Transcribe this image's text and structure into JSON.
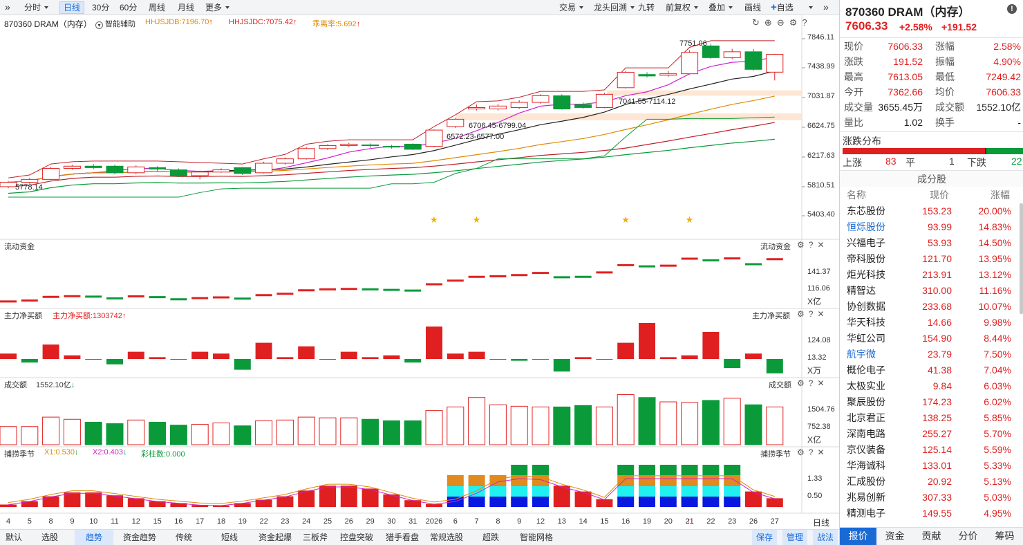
{
  "toolbar": {
    "items": [
      "分时",
      "日线",
      "30分",
      "60分",
      "周线",
      "月线",
      "更多"
    ],
    "right_items": [
      "交易",
      "龙头回溯",
      "九转",
      "前复权",
      "叠加",
      "画线",
      "自选"
    ]
  },
  "chart_header": {
    "title": "870360 DRAM（内存）",
    "assist": "智能辅助",
    "ind1": "HHJSJDB:7196.70",
    "ind2": "HHJSJDC:7075.42",
    "ind3": "乖离率:5.692"
  },
  "price_axis": [
    "7846.11",
    "7438.99",
    "7031.87",
    "6624.75",
    "6217.63",
    "5810.51",
    "5403.40"
  ],
  "annotations": {
    "high": "7751.06",
    "low": "5778.14",
    "zone1": "7041.55-7114.12",
    "zone2": "6706.45-6799.04",
    "zone3": "6572.23-6577.00"
  },
  "panels": {
    "flow": {
      "label": "流动资金",
      "right_label": "流动资金",
      "ticks": [
        "141.37",
        "116.06"
      ],
      "unit": "X亿"
    },
    "main": {
      "label": "主力净买额",
      "value": "主力净买额:1303742",
      "right_label": "主力净买额",
      "ticks": [
        "124.08",
        "13.32"
      ],
      "unit": "X万"
    },
    "volume": {
      "label": "成交额",
      "value": "1552.10亿",
      "right_label": "成交额",
      "ticks": [
        "1504.76",
        "752.38"
      ],
      "unit": "X亿"
    },
    "season": {
      "label": "捕捞季节",
      "x1": "X1:0.530",
      "x2": "X2:0.403",
      "bars": "彩柱数:0.000",
      "right_label": "捕捞季节",
      "ticks": [
        "1.33",
        "0.50"
      ]
    }
  },
  "x_axis": {
    "labels": [
      "4",
      "5",
      "8",
      "9",
      "10",
      "11",
      "12",
      "15",
      "16",
      "17",
      "18",
      "19",
      "22",
      "23",
      "24",
      "25",
      "26",
      "29",
      "30",
      "31",
      "2026",
      "6",
      "7",
      "8",
      "9",
      "12",
      "13",
      "14",
      "15",
      "16",
      "19",
      "20",
      "21",
      "22",
      "23",
      "26",
      "27"
    ],
    "unit": "日线"
  },
  "chart_data": {
    "type": "candlestick",
    "candles": [
      {
        "o": 5800,
        "c": 5860,
        "h": 5880,
        "l": 5778
      },
      {
        "o": 5860,
        "c": 5900,
        "h": 5920,
        "l": 5840
      },
      {
        "o": 5900,
        "c": 6050,
        "h": 6070,
        "l": 5890
      },
      {
        "o": 6050,
        "c": 6080,
        "h": 6100,
        "l": 6030
      },
      {
        "o": 6080,
        "c": 6060,
        "h": 6110,
        "l": 6040
      },
      {
        "o": 6080,
        "c": 5990,
        "h": 6100,
        "l": 5970
      },
      {
        "o": 5990,
        "c": 6070,
        "h": 6090,
        "l": 5970
      },
      {
        "o": 6060,
        "c": 6040,
        "h": 6080,
        "l": 6010
      },
      {
        "o": 6030,
        "c": 5950,
        "h": 6050,
        "l": 5930
      },
      {
        "o": 5950,
        "c": 6000,
        "h": 6020,
        "l": 5900
      },
      {
        "o": 6000,
        "c": 6030,
        "h": 6050,
        "l": 5990
      },
      {
        "o": 6060,
        "c": 5980,
        "h": 6070,
        "l": 5960
      },
      {
        "o": 5990,
        "c": 6120,
        "h": 6140,
        "l": 5980
      },
      {
        "o": 6120,
        "c": 6180,
        "h": 6200,
        "l": 6100
      },
      {
        "o": 6180,
        "c": 6320,
        "h": 6340,
        "l": 6170
      },
      {
        "o": 6320,
        "c": 6360,
        "h": 6380,
        "l": 6300
      },
      {
        "o": 6360,
        "c": 6380,
        "h": 6400,
        "l": 6340
      },
      {
        "o": 6370,
        "c": 6360,
        "h": 6390,
        "l": 6330
      },
      {
        "o": 6350,
        "c": 6340,
        "h": 6370,
        "l": 6320
      },
      {
        "o": 6380,
        "c": 6310,
        "h": 6390,
        "l": 6300
      },
      {
        "o": 6350,
        "c": 6572,
        "h": 6580,
        "l": 6340
      },
      {
        "o": 6620,
        "c": 6720,
        "h": 6740,
        "l": 6600
      },
      {
        "o": 6860,
        "c": 6880,
        "h": 6920,
        "l": 6840
      },
      {
        "o": 6860,
        "c": 6900,
        "h": 6930,
        "l": 6840
      },
      {
        "o": 6880,
        "c": 6950,
        "h": 6980,
        "l": 6860
      },
      {
        "o": 6950,
        "c": 7040,
        "h": 7060,
        "l": 6930
      },
      {
        "o": 7040,
        "c": 6860,
        "h": 7060,
        "l": 6850
      },
      {
        "o": 6920,
        "c": 6880,
        "h": 6950,
        "l": 6860
      },
      {
        "o": 6880,
        "c": 7060,
        "h": 7080,
        "l": 6870
      },
      {
        "o": 7150,
        "c": 7360,
        "h": 7380,
        "l": 7140
      },
      {
        "o": 7330,
        "c": 7310,
        "h": 7360,
        "l": 7290
      },
      {
        "o": 7320,
        "c": 7340,
        "h": 7380,
        "l": 7300
      },
      {
        "o": 7340,
        "c": 7630,
        "h": 7660,
        "l": 7330
      },
      {
        "o": 7720,
        "c": 7560,
        "h": 7751,
        "l": 7540
      },
      {
        "o": 7560,
        "c": 7640,
        "h": 7680,
        "l": 7540
      },
      {
        "o": 7640,
        "c": 7400,
        "h": 7680,
        "l": 7380
      },
      {
        "o": 7362,
        "c": 7606,
        "h": 7613,
        "l": 7249
      }
    ],
    "ylim": [
      5403.4,
      7846.11
    ]
  },
  "quote": {
    "title": "870360 DRAM（内存）",
    "price": "7606.33",
    "pct": "+2.58%",
    "chg": "+191.52",
    "rows": [
      {
        "l1": "现价",
        "v1": "7606.33",
        "l2": "涨幅",
        "v2": "2.58%"
      },
      {
        "l1": "涨跌",
        "v1": "191.52",
        "l2": "振幅",
        "v2": "4.90%"
      },
      {
        "l1": "最高",
        "v1": "7613.05",
        "l2": "最低",
        "v2": "7249.42"
      },
      {
        "l1": "今开",
        "v1": "7362.66",
        "l2": "均价",
        "v2": "7606.33"
      },
      {
        "l1": "成交量",
        "v1": "3655.45万",
        "l2": "成交额",
        "v2": "1552.10亿"
      },
      {
        "l1": "量比",
        "v1": "1.02",
        "l2": "换手",
        "v2": "-"
      }
    ],
    "dist_title": "涨跌分布",
    "up_label": "上涨",
    "up": "83",
    "flat_label": "平",
    "flat": "1",
    "down_label": "下跌",
    "down": "22",
    "cons_title": "成分股",
    "cons_headers": [
      "名称",
      "现价",
      "涨幅"
    ],
    "stocks": [
      {
        "n": "东芯股份",
        "p": "153.23",
        "c": "20.00%"
      },
      {
        "n": "恒烁股份",
        "p": "93.99",
        "c": "14.83%"
      },
      {
        "n": "兴福电子",
        "p": "53.93",
        "c": "14.50%"
      },
      {
        "n": "帝科股份",
        "p": "121.70",
        "c": "13.95%"
      },
      {
        "n": "炬光科技",
        "p": "213.91",
        "c": "13.12%"
      },
      {
        "n": "精智达",
        "p": "310.00",
        "c": "11.16%"
      },
      {
        "n": "协创数据",
        "p": "233.68",
        "c": "10.07%"
      },
      {
        "n": "华天科技",
        "p": "14.66",
        "c": "9.98%"
      },
      {
        "n": "华虹公司",
        "p": "154.90",
        "c": "8.44%"
      },
      {
        "n": "航宇微",
        "p": "23.79",
        "c": "7.50%"
      },
      {
        "n": "概伦电子",
        "p": "41.38",
        "c": "7.04%"
      },
      {
        "n": "太极实业",
        "p": "9.84",
        "c": "6.03%"
      },
      {
        "n": "聚辰股份",
        "p": "174.23",
        "c": "6.02%"
      },
      {
        "n": "北京君正",
        "p": "138.25",
        "c": "5.85%"
      },
      {
        "n": "深南电路",
        "p": "255.27",
        "c": "5.70%"
      },
      {
        "n": "京仪装备",
        "p": "125.14",
        "c": "5.59%"
      },
      {
        "n": "华海诚科",
        "p": "133.01",
        "c": "5.33%"
      },
      {
        "n": "汇成股份",
        "p": "20.92",
        "c": "5.13%"
      },
      {
        "n": "兆易创新",
        "p": "307.33",
        "c": "5.03%"
      },
      {
        "n": "精测电子",
        "p": "149.55",
        "c": "4.95%"
      }
    ],
    "tabs": [
      "报价",
      "资金",
      "贡献",
      "分价",
      "筹码"
    ]
  },
  "bottom": {
    "items": [
      "默认",
      "选股",
      "趋势",
      "资金趋势",
      "传统",
      "短线",
      "资金起爆",
      "三板斧",
      "控盘突破",
      "猎手看盘",
      "常规选股",
      "超跌",
      "智能网格"
    ],
    "right": [
      "保存",
      "管理",
      "战法"
    ]
  }
}
